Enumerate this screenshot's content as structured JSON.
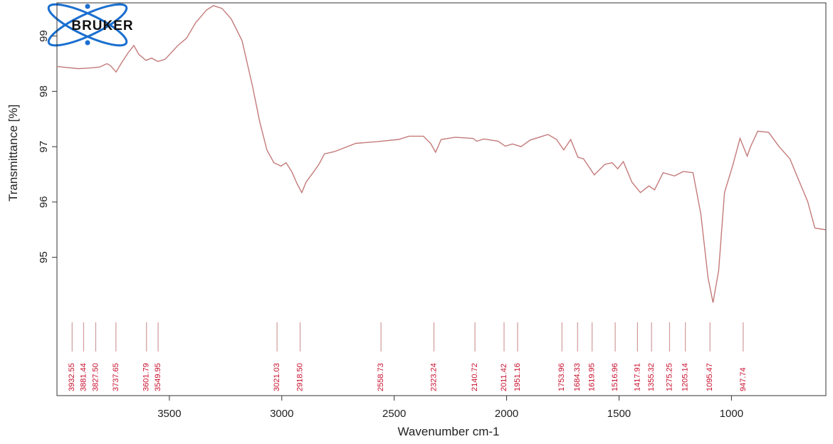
{
  "logo": "BRUKER",
  "chart_data": {
    "type": "line",
    "x_label": "Wavenumber cm-1",
    "y_label": "Transmittance [%]",
    "xlim": [
      4000,
      580
    ],
    "ylim": [
      92.5,
      99.6
    ],
    "xticks": [
      3500,
      3000,
      2500,
      2000,
      1500,
      1000
    ],
    "yticks": [
      95,
      96,
      97,
      98,
      99
    ],
    "color": "#c47a7a",
    "x": [
      4000,
      3905,
      3858,
      3810,
      3778,
      3763,
      3737,
      3715,
      3683,
      3658,
      3636,
      3604,
      3579,
      3551,
      3519,
      3462,
      3424,
      3383,
      3335,
      3304,
      3266,
      3225,
      3177,
      3130,
      3098,
      3066,
      3035,
      3003,
      2981,
      2956,
      2931,
      2911,
      2892,
      2861,
      2835,
      2810,
      2766,
      2671,
      2576,
      2481,
      2434,
      2370,
      2338,
      2316,
      2291,
      2228,
      2149,
      2133,
      2101,
      2038,
      2006,
      1974,
      1936,
      1895,
      1816,
      1778,
      1746,
      1715,
      1683,
      1658,
      1610,
      1563,
      1531,
      1506,
      1481,
      1443,
      1405,
      1367,
      1342,
      1304,
      1253,
      1215,
      1171,
      1136,
      1104,
      1082,
      1057,
      1031,
      993,
      962,
      930,
      915,
      883,
      835,
      788,
      740,
      693,
      661,
      629,
      600,
      582
    ],
    "values": [
      98.45,
      98.41,
      98.42,
      98.44,
      98.5,
      98.47,
      98.35,
      98.5,
      98.7,
      98.83,
      98.67,
      98.56,
      98.6,
      98.54,
      98.58,
      98.83,
      98.96,
      99.24,
      99.47,
      99.55,
      99.5,
      99.31,
      98.92,
      98.09,
      97.45,
      96.94,
      96.71,
      96.65,
      96.71,
      96.55,
      96.32,
      96.17,
      96.36,
      96.53,
      96.68,
      96.87,
      96.91,
      97.06,
      97.09,
      97.13,
      97.19,
      97.19,
      97.06,
      96.9,
      97.13,
      97.17,
      97.15,
      97.1,
      97.14,
      97.1,
      97.01,
      97.05,
      97.0,
      97.12,
      97.22,
      97.13,
      96.94,
      97.13,
      96.81,
      96.78,
      96.49,
      96.68,
      96.71,
      96.6,
      96.73,
      96.36,
      96.17,
      96.29,
      96.22,
      96.53,
      96.47,
      96.55,
      96.53,
      95.78,
      94.63,
      94.18,
      94.76,
      96.17,
      96.68,
      97.15,
      96.83,
      97.0,
      97.28,
      97.26,
      97.0,
      96.78,
      96.32,
      96.01,
      95.53,
      95.51,
      95.5
    ],
    "peaks": {
      "color": "#c8102e",
      "values": [
        3932.55,
        3881.44,
        3827.5,
        3737.65,
        3601.79,
        3549.95,
        3021.03,
        2918.5,
        2558.73,
        2323.24,
        2140.72,
        2011.42,
        1951.16,
        1753.96,
        1684.33,
        1619.95,
        1516.96,
        1417.91,
        1355.32,
        1275.25,
        1205.14,
        1095.47,
        947.74
      ],
      "value_labels": [
        "3932.55",
        "3881.44",
        "3827.50",
        "3737.65",
        "3601.79",
        "3549.95",
        "3021.03",
        "2918.50",
        "2558.73",
        "2323.24",
        "2140.72",
        "2011.42",
        "1951.16",
        "1753.96",
        "1684.33",
        "1619.95",
        "1516.96",
        "1417.91",
        "1355.32",
        "1275.25",
        "1205.14",
        "1095.47",
        "947.74"
      ]
    }
  }
}
